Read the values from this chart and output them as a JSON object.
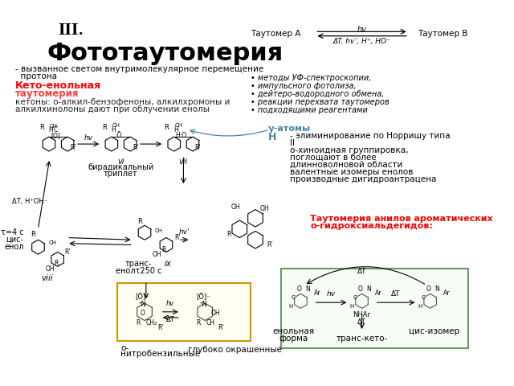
{
  "bg_color": "#ffffff",
  "title_roman": "III.",
  "title_main": "Фототаутомерия",
  "subtitle": "- вызванное светом внутримолекулярное перемещение",
  "subtitle2": "  протона",
  "red_heading1": "Кето-енольная",
  "red_heading2": "таутомерия",
  "gray_text1": "кетоны: о-алкил-бензофеноны, алкилхромоны и",
  "gray_text2": "алкилхинолоны дают при облучении енолы",
  "tautomer_label_a": "Таутомер А",
  "tautomer_label_b": "Таутомер В",
  "tautomer_arrow_top": "hv",
  "tautomer_arrow_bot": "ΔT, hv’, H⁺, HO⁻",
  "bullet_items": [
    "методы УФ-спектроскопии,",
    "импульсного фотолиза,",
    "дейтеро-водородного обмена,",
    "реакции перехвата таутомеров",
    "подходящими реагентами"
  ],
  "gamma_label": "γ-атомы",
  "gamma_label2": "H",
  "norrish_line1": "- элиминирование по Норришу типа",
  "norrish_line2": "II",
  "norrish_line3": "о-хиноидная группировка,",
  "norrish_line4": "поглощают в более",
  "norrish_line5": "длинноволновой области",
  "norrish_line6": "валентные изомеры енолов",
  "norrish_line7": "производные дигидроантрацена",
  "biradical_label1": "vi",
  "biradical_label2": "бирадикальный",
  "biradical_label3": "триплет",
  "vii_label": "vii",
  "delta_label": "ΔT, H⁺OH⁻",
  "trans_label1": "транс-",
  "trans_label2": "енолτ250 с",
  "ix_label": "ix",
  "t4_line1": "τ=4 с",
  "t4_line2": "цис-",
  "t4_line3": "енол",
  "viii_label": "viii",
  "nitrobenzyl_label1": "о-",
  "nitrobenzyl_label2": "нитробензильные",
  "colored_label": "глубоко окрашенные",
  "anils_heading1": "Таутомерия анилов ароматических",
  "anils_heading2": "о-гидроксиальдегидов:",
  "enol_label1": "енольная",
  "enol_label2": "форма",
  "trans_keto_label": "транс-кето-",
  "cis_label": "цис-изомер",
  "hv_label": "hv",
  "dT_label": "ΔT",
  "hv_prime": "hv’"
}
